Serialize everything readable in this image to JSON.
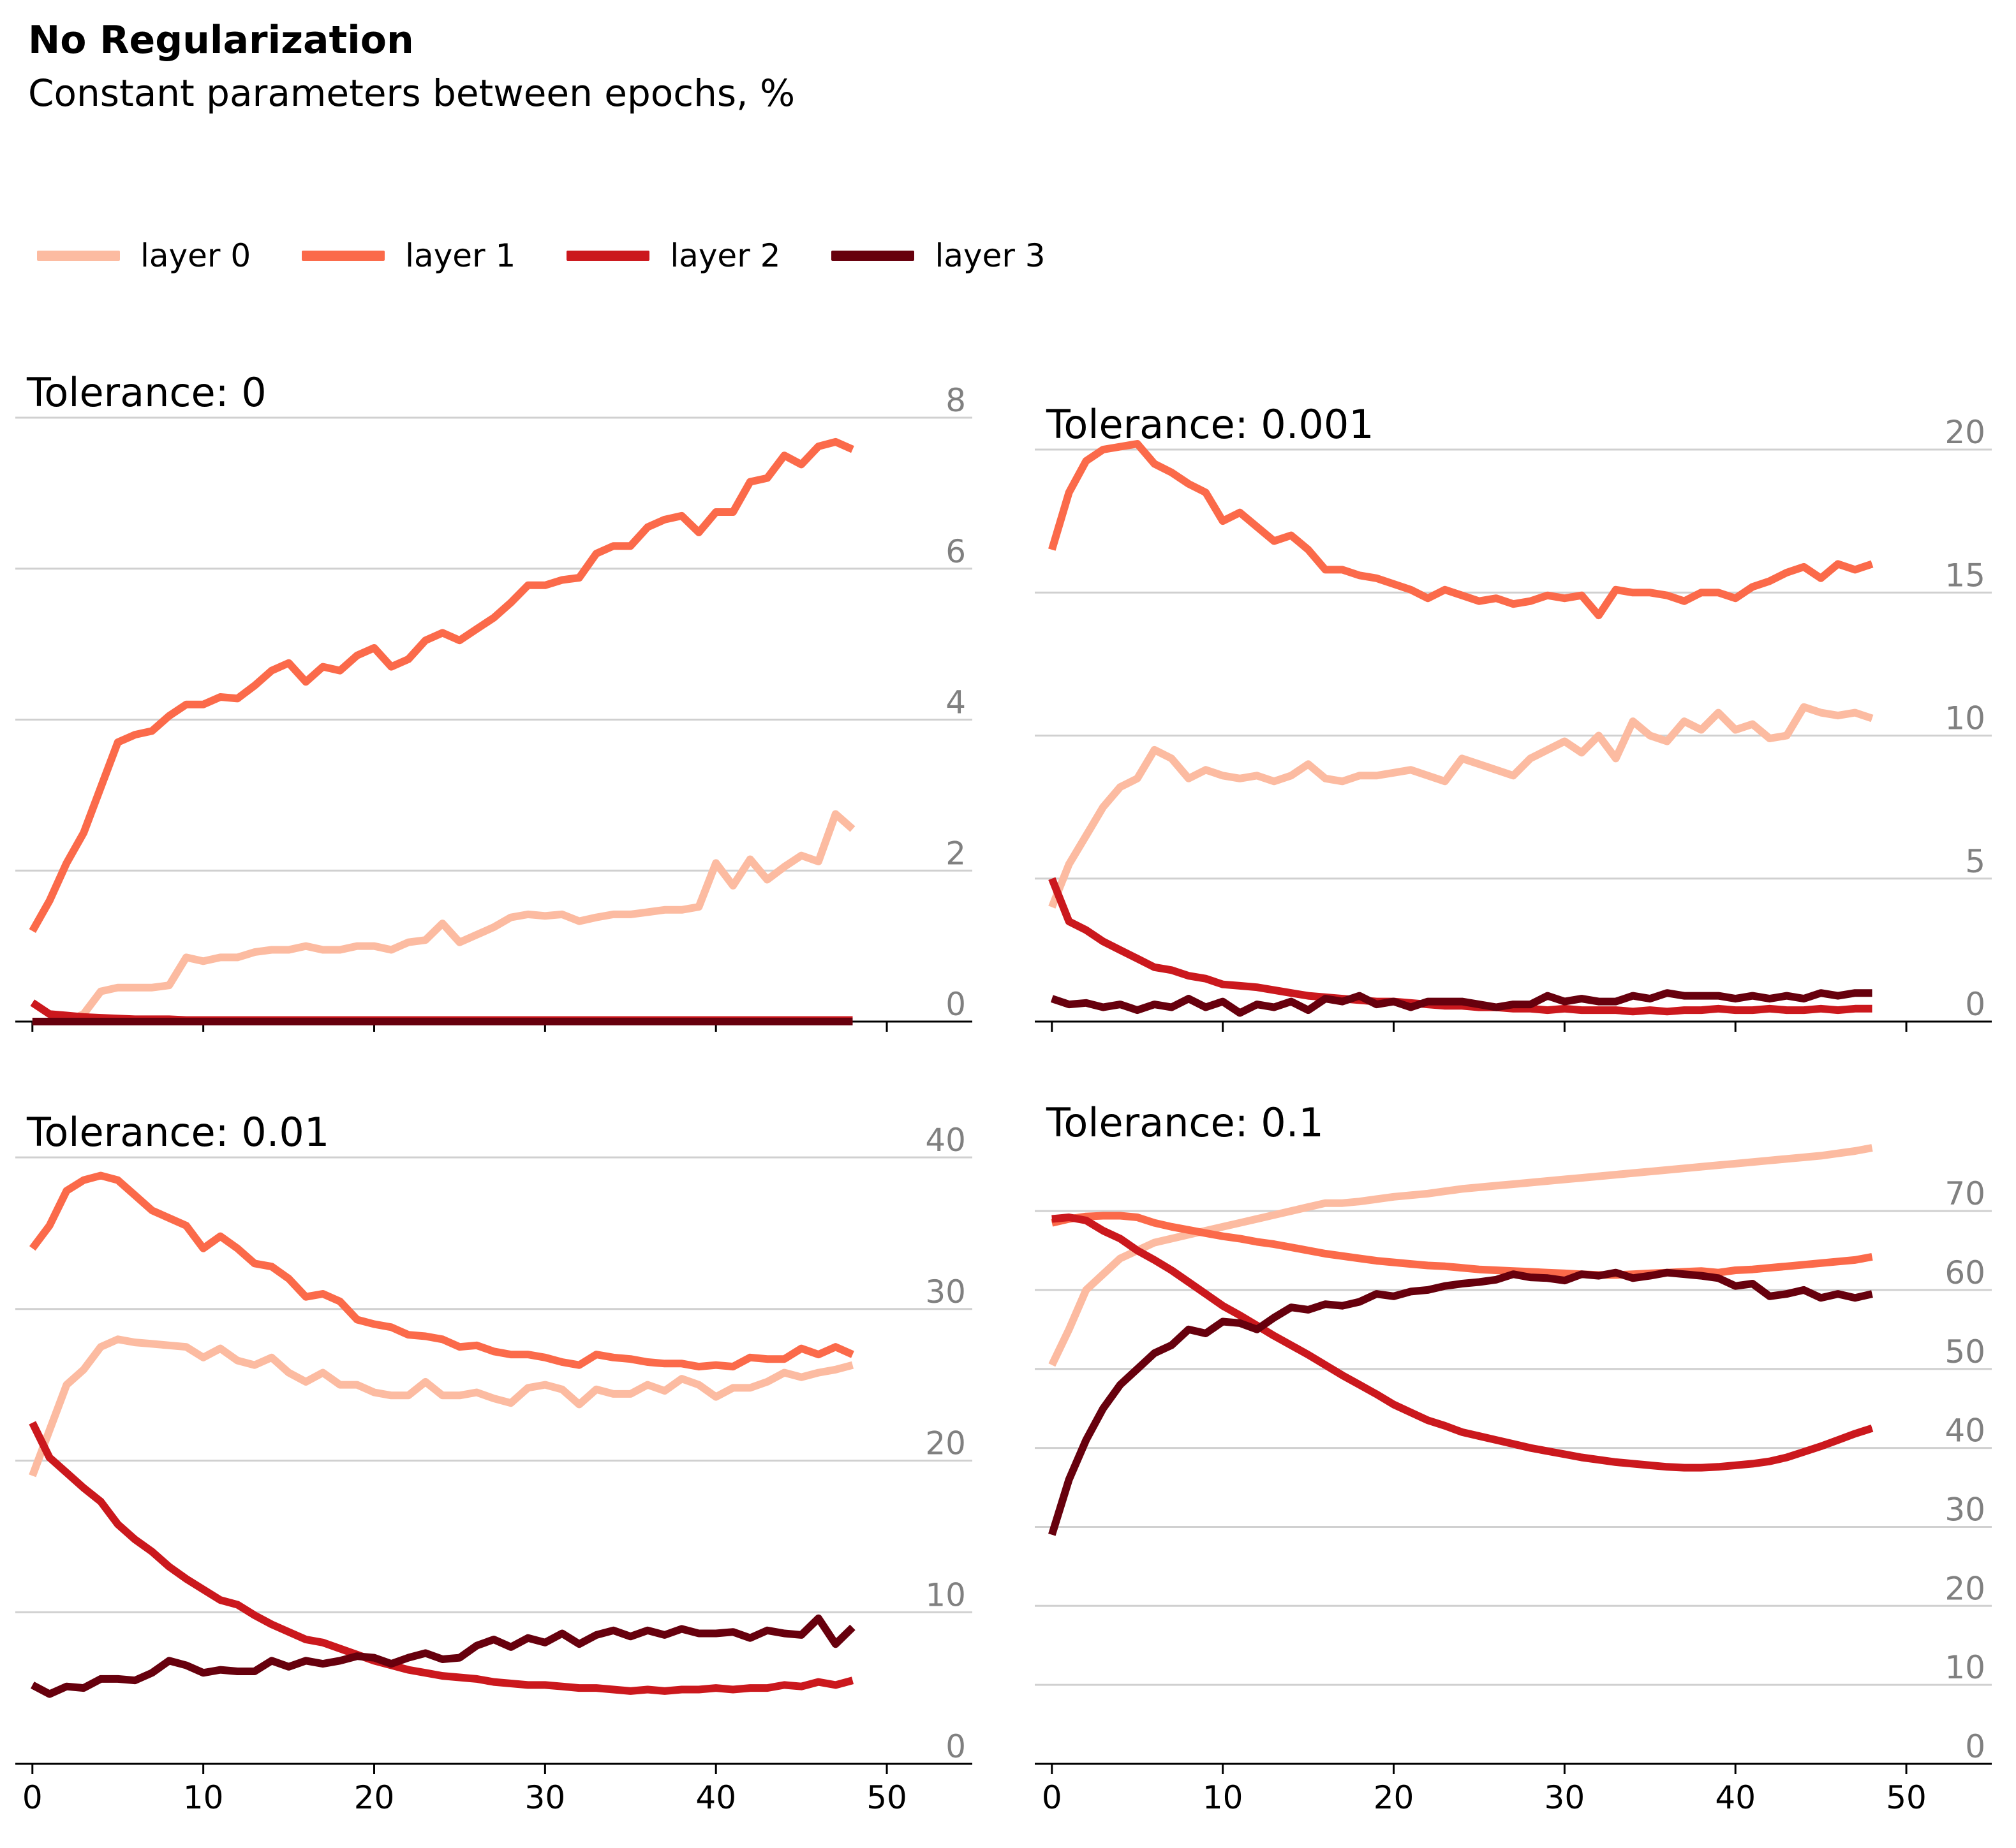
{
  "title": "No Regularization",
  "subtitle": "Constant parameters between epochs, %",
  "legend": [
    {
      "label": "layer 0",
      "color": "#fcbba1"
    },
    {
      "label": "layer 1",
      "color": "#fb6a4a"
    },
    {
      "label": "layer 2",
      "color": "#cb181d"
    },
    {
      "label": "layer 3",
      "color": "#67000d"
    }
  ],
  "chart_data": [
    {
      "type": "line",
      "title": "Tolerance: 0",
      "ylim": [
        0,
        8
      ],
      "yticks": [
        0,
        2,
        4,
        6,
        8
      ],
      "xlim": [
        -1,
        55
      ],
      "xticks": [
        0,
        10,
        20,
        30,
        40,
        50
      ],
      "series": [
        {
          "name": "layer 0",
          "values": [
            0.0,
            0.0,
            0.0,
            0.1,
            0.4,
            0.45,
            0.45,
            0.45,
            0.48,
            0.85,
            0.8,
            0.85,
            0.85,
            0.92,
            0.95,
            0.95,
            1.0,
            0.95,
            0.95,
            1.0,
            1.0,
            0.95,
            1.05,
            1.08,
            1.3,
            1.05,
            1.15,
            1.25,
            1.38,
            1.42,
            1.4,
            1.42,
            1.33,
            1.38,
            1.42,
            1.42,
            1.45,
            1.48,
            1.48,
            1.52,
            2.1,
            1.8,
            2.15,
            1.88,
            2.05,
            2.2,
            2.12,
            2.75,
            2.55
          ]
        },
        {
          "name": "layer 1",
          "values": [
            1.2,
            1.6,
            2.1,
            2.5,
            3.1,
            3.7,
            3.8,
            3.85,
            4.05,
            4.2,
            4.2,
            4.3,
            4.28,
            4.45,
            4.65,
            4.75,
            4.5,
            4.7,
            4.65,
            4.85,
            4.95,
            4.7,
            4.8,
            5.05,
            5.15,
            5.05,
            5.2,
            5.35,
            5.55,
            5.78,
            5.78,
            5.85,
            5.88,
            6.2,
            6.3,
            6.3,
            6.55,
            6.65,
            6.7,
            6.48,
            6.75,
            6.75,
            7.15,
            7.2,
            7.5,
            7.38,
            7.62,
            7.68,
            7.58
          ]
        },
        {
          "name": "layer 2",
          "values": [
            0.25,
            0.1,
            0.08,
            0.06,
            0.05,
            0.04,
            0.03,
            0.03,
            0.03,
            0.02,
            0.02,
            0.02,
            0.02,
            0.02,
            0.02,
            0.02,
            0.02,
            0.02,
            0.02,
            0.02,
            0.02,
            0.02,
            0.02,
            0.02,
            0.02,
            0.02,
            0.02,
            0.02,
            0.02,
            0.02,
            0.02,
            0.02,
            0.02,
            0.02,
            0.02,
            0.02,
            0.02,
            0.02,
            0.02,
            0.02,
            0.02,
            0.02,
            0.02,
            0.02,
            0.02,
            0.02,
            0.02,
            0.02,
            0.02
          ]
        },
        {
          "name": "layer 3",
          "values": [
            0.0,
            0.0,
            0.0,
            0.0,
            0.0,
            0.0,
            0.0,
            0.0,
            0.0,
            0.0,
            0.0,
            0.0,
            0.0,
            0.0,
            0.0,
            0.0,
            0.0,
            0.0,
            0.0,
            0.0,
            0.0,
            0.0,
            0.0,
            0.0,
            0.0,
            0.0,
            0.0,
            0.0,
            0.0,
            0.0,
            0.0,
            0.0,
            0.0,
            0.0,
            0.0,
            0.0,
            0.0,
            0.0,
            0.0,
            0.0,
            0.0,
            0.0,
            0.0,
            0.0,
            0.0,
            0.0,
            0.0,
            0.0,
            0.0
          ]
        }
      ]
    },
    {
      "type": "line",
      "title": "Tolerance: 0.001",
      "ylim": [
        0,
        20
      ],
      "yticks": [
        0,
        5,
        10,
        15,
        20
      ],
      "xlim": [
        -1,
        55
      ],
      "xticks": [
        0,
        10,
        20,
        30,
        40,
        50
      ],
      "series": [
        {
          "name": "layer 0",
          "values": [
            4.0,
            5.5,
            6.5,
            7.5,
            8.2,
            8.5,
            9.5,
            9.2,
            8.5,
            8.8,
            8.6,
            8.5,
            8.6,
            8.4,
            8.6,
            9.0,
            8.5,
            8.4,
            8.6,
            8.6,
            8.7,
            8.8,
            8.6,
            8.4,
            9.2,
            9.0,
            8.8,
            8.6,
            9.2,
            9.5,
            9.8,
            9.4,
            10.0,
            9.2,
            10.5,
            10.0,
            9.8,
            10.5,
            10.2,
            10.8,
            10.2,
            10.4,
            9.9,
            10.0,
            11.0,
            10.8,
            10.7,
            10.8,
            10.6
          ]
        },
        {
          "name": "layer 1",
          "values": [
            16.5,
            18.5,
            19.6,
            20.0,
            20.1,
            20.2,
            19.5,
            19.2,
            18.8,
            18.5,
            17.5,
            17.8,
            17.3,
            16.8,
            17.0,
            16.5,
            15.8,
            15.8,
            15.6,
            15.5,
            15.3,
            15.1,
            14.8,
            15.1,
            14.9,
            14.7,
            14.8,
            14.6,
            14.7,
            14.9,
            14.8,
            14.9,
            14.2,
            15.1,
            15.0,
            15.0,
            14.9,
            14.7,
            15.0,
            15.0,
            14.8,
            15.2,
            15.4,
            15.7,
            15.9,
            15.5,
            16.0,
            15.8,
            16.0
          ]
        },
        {
          "name": "layer 2",
          "values": [
            5.0,
            3.5,
            3.2,
            2.8,
            2.5,
            2.2,
            1.9,
            1.8,
            1.6,
            1.5,
            1.3,
            1.25,
            1.2,
            1.1,
            1.0,
            0.9,
            0.85,
            0.8,
            0.75,
            0.7,
            0.7,
            0.65,
            0.6,
            0.55,
            0.55,
            0.5,
            0.5,
            0.45,
            0.45,
            0.4,
            0.45,
            0.4,
            0.4,
            0.4,
            0.35,
            0.4,
            0.35,
            0.4,
            0.4,
            0.45,
            0.4,
            0.4,
            0.45,
            0.4,
            0.4,
            0.45,
            0.4,
            0.45,
            0.45
          ]
        },
        {
          "name": "layer 3",
          "values": [
            0.8,
            0.6,
            0.65,
            0.5,
            0.6,
            0.4,
            0.6,
            0.5,
            0.8,
            0.5,
            0.7,
            0.3,
            0.6,
            0.5,
            0.7,
            0.4,
            0.8,
            0.7,
            0.9,
            0.6,
            0.7,
            0.5,
            0.7,
            0.7,
            0.7,
            0.6,
            0.5,
            0.6,
            0.6,
            0.9,
            0.7,
            0.8,
            0.7,
            0.7,
            0.9,
            0.8,
            1.0,
            0.9,
            0.9,
            0.9,
            0.8,
            0.9,
            0.8,
            0.9,
            0.8,
            1.0,
            0.9,
            1.0,
            1.0
          ]
        }
      ]
    },
    {
      "type": "line",
      "title": "Tolerance: 0.01",
      "ylim": [
        0,
        40
      ],
      "yticks": [
        0,
        10,
        20,
        30,
        40
      ],
      "xlim": [
        -1,
        55
      ],
      "xticks": [
        0,
        10,
        20,
        30,
        40,
        50
      ],
      "series": [
        {
          "name": "layer 0",
          "values": [
            19.0,
            22.0,
            25.0,
            26.0,
            27.5,
            28.0,
            27.8,
            27.7,
            27.6,
            27.5,
            26.8,
            27.4,
            26.6,
            26.3,
            26.8,
            25.8,
            25.2,
            25.8,
            25.0,
            25.0,
            24.5,
            24.3,
            24.3,
            25.2,
            24.3,
            24.3,
            24.5,
            24.1,
            23.8,
            24.8,
            25.0,
            24.7,
            23.7,
            24.7,
            24.4,
            24.4,
            25.0,
            24.6,
            25.4,
            25.0,
            24.2,
            24.8,
            24.8,
            25.2,
            25.8,
            25.5,
            25.8,
            26.0,
            26.3
          ]
        },
        {
          "name": "layer 1",
          "values": [
            34.0,
            35.5,
            37.8,
            38.5,
            38.8,
            38.5,
            37.5,
            36.5,
            36.0,
            35.5,
            34.0,
            34.8,
            34.0,
            33.0,
            32.8,
            32.0,
            30.8,
            31.0,
            30.5,
            29.3,
            29.0,
            28.8,
            28.3,
            28.2,
            28.0,
            27.5,
            27.6,
            27.2,
            27.0,
            27.0,
            26.8,
            26.5,
            26.3,
            27.0,
            26.8,
            26.7,
            26.5,
            26.4,
            26.4,
            26.2,
            26.3,
            26.2,
            26.8,
            26.7,
            26.7,
            27.4,
            27.0,
            27.5,
            27.0
          ]
        },
        {
          "name": "layer 2",
          "values": [
            22.5,
            20.2,
            19.2,
            18.2,
            17.3,
            15.8,
            14.8,
            14.0,
            13.0,
            12.2,
            11.5,
            10.8,
            10.5,
            9.8,
            9.2,
            8.7,
            8.2,
            8.0,
            7.6,
            7.2,
            6.8,
            6.5,
            6.2,
            6.0,
            5.8,
            5.7,
            5.6,
            5.4,
            5.3,
            5.2,
            5.2,
            5.1,
            5.0,
            5.0,
            4.9,
            4.8,
            4.9,
            4.8,
            4.9,
            4.9,
            5.0,
            4.9,
            5.0,
            5.0,
            5.2,
            5.1,
            5.4,
            5.2,
            5.5
          ]
        },
        {
          "name": "layer 3",
          "values": [
            5.2,
            4.6,
            5.1,
            5.0,
            5.6,
            5.6,
            5.5,
            6.0,
            6.8,
            6.5,
            6.0,
            6.2,
            6.1,
            6.1,
            6.8,
            6.4,
            6.8,
            6.6,
            6.8,
            7.1,
            7.0,
            6.6,
            7.0,
            7.3,
            6.9,
            7.0,
            7.8,
            8.2,
            7.7,
            8.3,
            8.0,
            8.6,
            7.9,
            8.5,
            8.8,
            8.4,
            8.8,
            8.5,
            8.9,
            8.6,
            8.6,
            8.7,
            8.3,
            8.8,
            8.6,
            8.5,
            9.6,
            7.9,
            9.0
          ]
        }
      ]
    },
    {
      "type": "line",
      "title": "Tolerance: 0.1",
      "ylim": [
        0,
        78
      ],
      "yticks": [
        0,
        10,
        20,
        30,
        40,
        50,
        60,
        70
      ],
      "xlim": [
        -1,
        55
      ],
      "xticks": [
        0,
        10,
        20,
        30,
        40,
        50
      ],
      "series": [
        {
          "name": "layer 0",
          "values": [
            50.5,
            55.0,
            60.0,
            62.0,
            64.0,
            65.0,
            66.0,
            66.5,
            67.0,
            67.5,
            68.0,
            68.5,
            69.0,
            69.5,
            70.0,
            70.5,
            71.0,
            71.0,
            71.2,
            71.5,
            71.8,
            72.0,
            72.2,
            72.5,
            72.8,
            73.0,
            73.2,
            73.4,
            73.6,
            73.8,
            74.0,
            74.2,
            74.4,
            74.6,
            74.8,
            75.0,
            75.2,
            75.4,
            75.6,
            75.8,
            76.0,
            76.2,
            76.4,
            76.6,
            76.8,
            77.0,
            77.3,
            77.6,
            78.0
          ]
        },
        {
          "name": "layer 1",
          "values": [
            68.5,
            69.0,
            69.3,
            69.4,
            69.4,
            69.2,
            68.5,
            68.0,
            67.6,
            67.2,
            66.8,
            66.5,
            66.1,
            65.8,
            65.4,
            65.0,
            64.6,
            64.3,
            64.0,
            63.7,
            63.5,
            63.3,
            63.1,
            63.0,
            62.8,
            62.6,
            62.5,
            62.4,
            62.3,
            62.2,
            62.1,
            62.0,
            61.9,
            61.9,
            62.0,
            62.1,
            62.2,
            62.3,
            62.4,
            62.2,
            62.5,
            62.6,
            62.8,
            63.0,
            63.2,
            63.4,
            63.6,
            63.8,
            64.2
          ]
        },
        {
          "name": "layer 2",
          "values": [
            69.0,
            69.2,
            68.8,
            67.5,
            66.5,
            65.0,
            63.8,
            62.5,
            61.0,
            59.5,
            58.0,
            56.8,
            55.5,
            54.2,
            53.0,
            51.8,
            50.5,
            49.2,
            48.0,
            46.8,
            45.5,
            44.5,
            43.5,
            42.8,
            42.0,
            41.5,
            41.0,
            40.5,
            40.0,
            39.6,
            39.2,
            38.8,
            38.5,
            38.2,
            38.0,
            37.8,
            37.6,
            37.5,
            37.5,
            37.6,
            37.8,
            38.0,
            38.3,
            38.8,
            39.5,
            40.2,
            41.0,
            41.8,
            42.5
          ]
        },
        {
          "name": "layer 3",
          "values": [
            29.0,
            36.0,
            41.0,
            45.0,
            48.0,
            50.0,
            52.0,
            53.0,
            55.0,
            54.5,
            56.0,
            55.8,
            55.0,
            56.5,
            57.8,
            57.5,
            58.2,
            58.0,
            58.5,
            59.5,
            59.2,
            59.8,
            60.0,
            60.5,
            60.8,
            61.0,
            61.3,
            62.0,
            61.6,
            61.5,
            61.2,
            62.0,
            61.8,
            62.2,
            61.5,
            61.8,
            62.2,
            62.0,
            61.8,
            61.5,
            60.5,
            60.8,
            59.2,
            59.5,
            60.0,
            59.0,
            59.5,
            59.0,
            59.5
          ]
        }
      ]
    }
  ]
}
